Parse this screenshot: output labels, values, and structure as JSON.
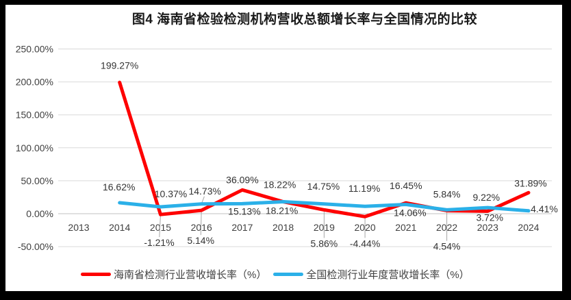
{
  "title": {
    "text": "图4 海南省检验检测机构营收总额增长率与全国情况的比较"
  },
  "chart_data": {
    "type": "line",
    "title": "图4 海南省检验检测机构营收总额增长率与全国情况的比较",
    "x": [
      2013,
      2014,
      2015,
      2016,
      2017,
      2018,
      2019,
      2020,
      2021,
      2022,
      2023,
      2024
    ],
    "x_tick_labels": [
      "2013",
      "2014",
      "2015",
      "2016",
      "2017",
      "2018",
      "2019",
      "2020",
      "2021",
      "2022",
      "2023",
      "2024"
    ],
    "y_axis": {
      "ylim": [
        -50,
        250
      ],
      "ticks": [
        250,
        200,
        150,
        100,
        50,
        0,
        -50
      ],
      "tick_labels": [
        "250.00%",
        "200.00%",
        "150.00%",
        "100.00%",
        "50.00%",
        "0.00%",
        "-50.00%"
      ]
    },
    "grid": true,
    "legend_position": "bottom",
    "colors": {
      "grid": "#d9d9d9",
      "zero_line": "#c2c2c2",
      "leader": "#a6a6a6"
    },
    "series": [
      {
        "name": "海南省检测行业营收增长率（%）",
        "color": "#fe0000",
        "points": [
          {
            "x": 2014,
            "y": 199.27,
            "label": "199.27%",
            "dx": 0,
            "dy": -20,
            "leader": false
          },
          {
            "x": 2015,
            "y": -1.21,
            "label": "-1.21%",
            "dx": -2,
            "dy": 46,
            "leader": true
          },
          {
            "x": 2016,
            "y": 5.14,
            "label": "5.14%",
            "dx": -1,
            "dy": 49,
            "leader": true
          },
          {
            "x": 2017,
            "y": 36.09,
            "label": "36.09%",
            "dx": 0,
            "dy": -10,
            "leader": false
          },
          {
            "x": 2018,
            "y": 18.22,
            "label": "18.22%",
            "dx": -5,
            "dy": -20,
            "leader": false
          },
          {
            "x": 2019,
            "y": 5.86,
            "label": "5.86%",
            "dx": 0,
            "dy": 54,
            "leader": true
          },
          {
            "x": 2020,
            "y": -4.44,
            "label": "-4.44%",
            "dx": 0,
            "dy": 44,
            "leader": true
          },
          {
            "x": 2021,
            "y": 16.45,
            "label": "16.45%",
            "dx": 0,
            "dy": -20,
            "leader": false
          },
          {
            "x": 2022,
            "y": 4.54,
            "label": "4.54%",
            "dx": 0,
            "dy": 57,
            "leader": true
          },
          {
            "x": 2023,
            "y": 3.72,
            "label": "3.72%",
            "dx": 3,
            "dy": 14,
            "leader": false
          },
          {
            "x": 2024,
            "y": 31.89,
            "label": "31.89%",
            "dx": 3,
            "dy": -9,
            "leader": false
          }
        ]
      },
      {
        "name": "全国检测行业年度营收增长率（%）",
        "color": "#2bb0e8",
        "points": [
          {
            "x": 2014,
            "y": 16.62,
            "label": "16.62%",
            "dx": -1,
            "dy": -18,
            "leader": false
          },
          {
            "x": 2015,
            "y": 10.37,
            "label": "10.37%",
            "dx": 15,
            "dy": -14,
            "leader": false
          },
          {
            "x": 2016,
            "y": 14.73,
            "label": "14.73%",
            "dx": 5,
            "dy": -14,
            "leader": true
          },
          {
            "x": 2017,
            "y": 15.13,
            "label": "15.13%",
            "dx": 3,
            "dy": 16,
            "leader": false
          },
          {
            "x": 2018,
            "y": 18.21,
            "label": "18.21%",
            "dx": -2,
            "dy": 18,
            "leader": false
          },
          {
            "x": 2019,
            "y": 14.75,
            "label": "14.75%",
            "dx": -1,
            "dy": -21,
            "leader": false
          },
          {
            "x": 2020,
            "y": 11.19,
            "label": "11.19%",
            "dx": -1,
            "dy": -21,
            "leader": false
          },
          {
            "x": 2021,
            "y": 14.06,
            "label": "14.06%",
            "dx": 6,
            "dy": 17,
            "leader": false
          },
          {
            "x": 2022,
            "y": 5.84,
            "label": "5.84%",
            "dx": 0,
            "dy": -18,
            "leader": false
          },
          {
            "x": 2023,
            "y": 9.22,
            "label": "9.22%",
            "dx": -2,
            "dy": -10,
            "leader": false
          },
          {
            "x": 2024,
            "y": 4.41,
            "label": "4.41%",
            "dx": 23,
            "dy": 2,
            "leader": false
          }
        ]
      }
    ]
  }
}
